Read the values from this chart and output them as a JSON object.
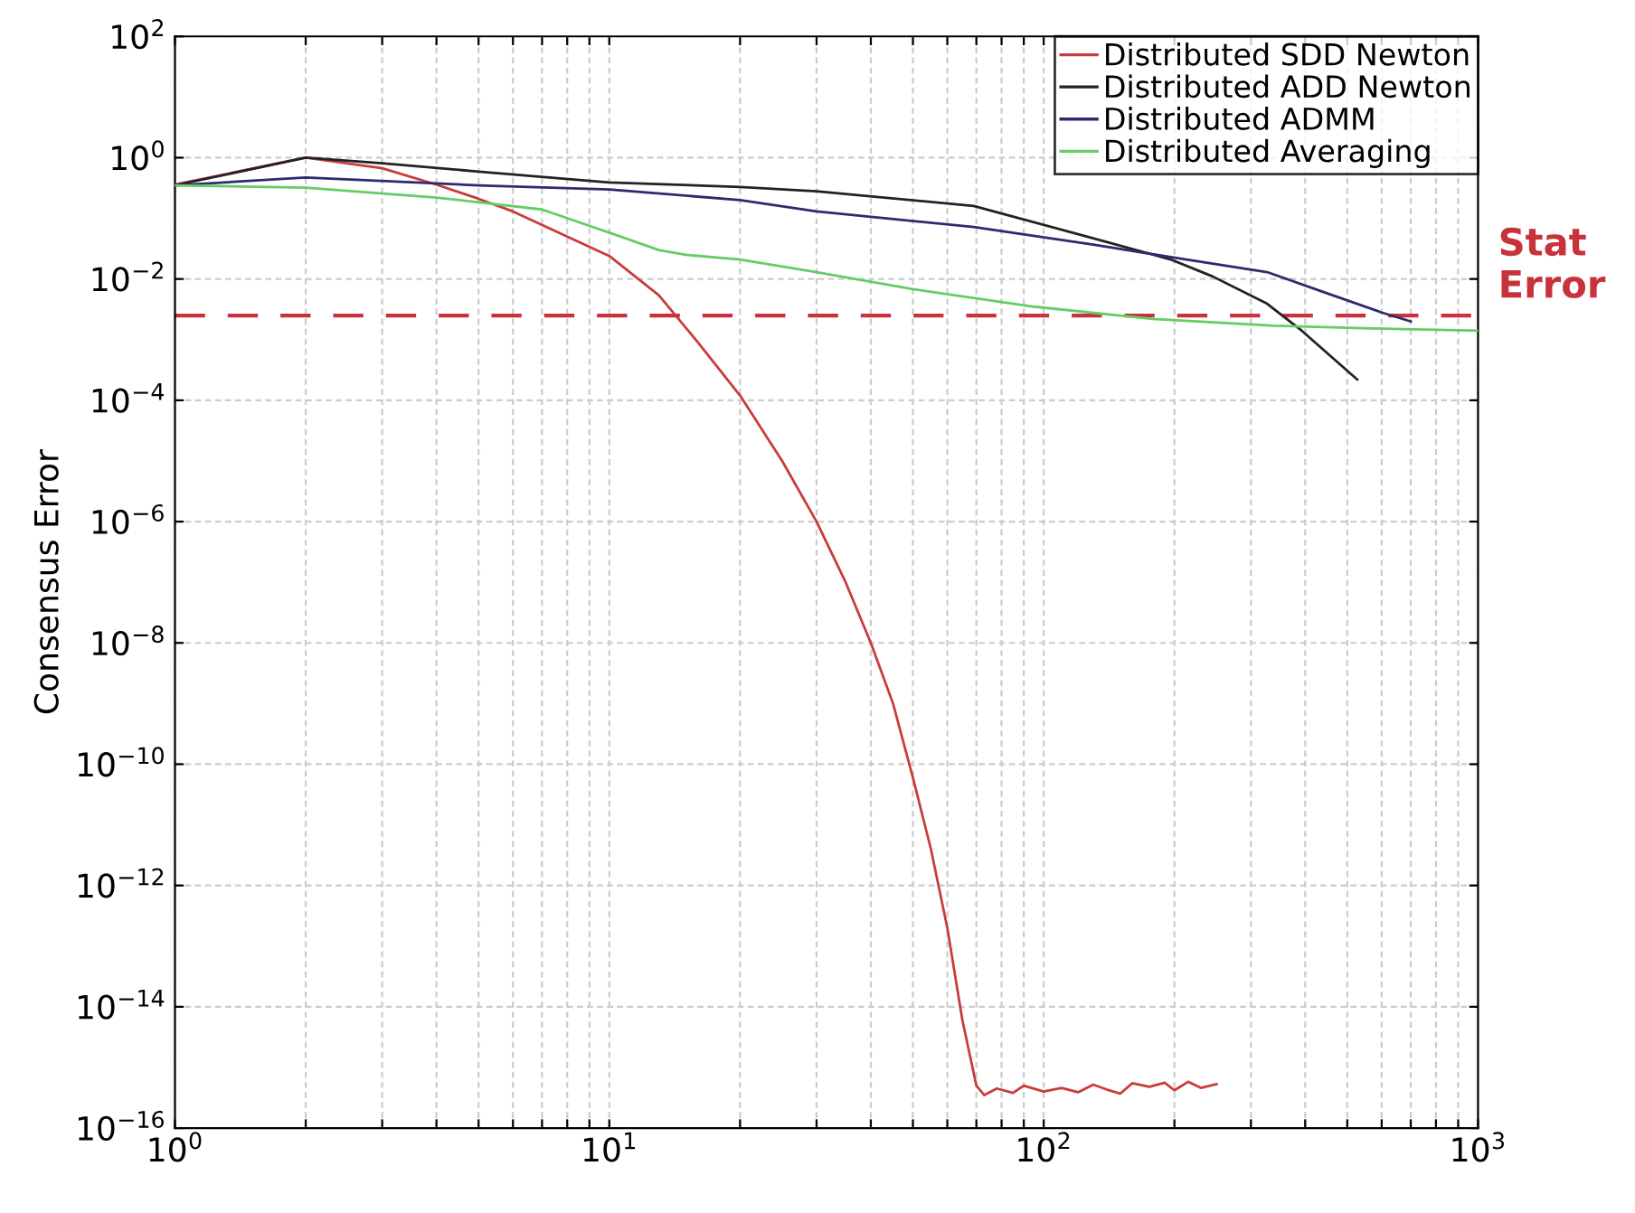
{
  "chart_data": {
    "type": "line",
    "ylabel": "Consensus Error",
    "log": "xy",
    "grid": true,
    "legend": "top right",
    "line_style": "solid",
    "marker": "none",
    "xlim": [
      1,
      1000
    ],
    "xticks": [
      {
        "value": 1,
        "label": "10$^{0}$"
      },
      {
        "value": 2,
        "label": null
      },
      {
        "value": 3,
        "label": null
      },
      {
        "value": 4,
        "label": null
      },
      {
        "value": 5,
        "label": null
      },
      {
        "value": 6,
        "label": null
      },
      {
        "value": 7,
        "label": null
      },
      {
        "value": 8,
        "label": null
      },
      {
        "value": 9,
        "label": null
      },
      {
        "value": 10,
        "label": "10$^{1}$"
      },
      {
        "value": 20,
        "label": null
      },
      {
        "value": 30,
        "label": null
      },
      {
        "value": 40,
        "label": null
      },
      {
        "value": 50,
        "label": null
      },
      {
        "value": 60,
        "label": null
      },
      {
        "value": 70,
        "label": null
      },
      {
        "value": 80,
        "label": null
      },
      {
        "value": 90,
        "label": null
      },
      {
        "value": 100,
        "label": "10$^{2}$"
      },
      {
        "value": 200,
        "label": null
      },
      {
        "value": 300,
        "label": null
      },
      {
        "value": 400,
        "label": null
      },
      {
        "value": 500,
        "label": null
      },
      {
        "value": 600,
        "label": null
      },
      {
        "value": 700,
        "label": null
      },
      {
        "value": 800,
        "label": null
      },
      {
        "value": 900,
        "label": null
      },
      {
        "value": 1000,
        "label": "10$^{3}$"
      }
    ],
    "ylim": [
      1e-16,
      100
    ],
    "yticks": [
      {
        "value": 1e-16,
        "label": "10$^{−16}$"
      },
      {
        "value": 1e-14,
        "label": "10$^{−14}$"
      },
      {
        "value": 1e-12,
        "label": "10$^{−12}$"
      },
      {
        "value": 1e-10,
        "label": "10$^{−10}$"
      },
      {
        "value": 1e-08,
        "label": "10$^{−8}$"
      },
      {
        "value": 1e-06,
        "label": "10$^{−6}$"
      },
      {
        "value": 0.0001,
        "label": "10$^{−4}$"
      },
      {
        "value": 0.01,
        "label": "10$^{−2}$"
      },
      {
        "value": 1,
        "label": "10$^{0}$"
      },
      {
        "value": 100,
        "label": "10$^{2}$"
      }
    ],
    "ref_lines": [
      {
        "axis": "y",
        "value": 0.0025,
        "label": "Stat Error",
        "color": "#c8323c",
        "line_style": "dashed"
      }
    ],
    "series": [
      {
        "name": "Distributed SDD Newton",
        "color": "#c83c3c",
        "x": [
          1,
          2,
          3,
          4,
          5,
          6,
          8,
          10,
          13,
          16,
          20,
          25,
          30,
          35,
          40,
          45,
          50,
          55,
          60,
          65,
          70,
          73,
          78,
          85,
          90,
          100,
          110,
          120,
          130,
          140,
          150,
          160,
          175,
          190,
          200,
          215,
          230,
          250
        ],
        "values": [
          0.36,
          1.0,
          0.67,
          0.36,
          0.21,
          0.13,
          0.05,
          0.024,
          0.0054,
          0.0009,
          0.00012,
          1e-05,
          1e-06,
          1e-07,
          1e-08,
          1e-09,
          6e-11,
          4e-12,
          2e-13,
          6e-15,
          5e-16,
          3.5e-16,
          4.5e-16,
          3.8e-16,
          5e-16,
          4e-16,
          4.6e-16,
          3.9e-16,
          5.2e-16,
          4.3e-16,
          3.7e-16,
          5.5e-16,
          4.8e-16,
          5.6e-16,
          4.2e-16,
          5.8e-16,
          4.6e-16,
          5.3e-16
        ]
      },
      {
        "name": "Distributed ADD Newton",
        "color": "#222222",
        "x": [
          1,
          2,
          3,
          5,
          10,
          20,
          30,
          69,
          130,
          196,
          245,
          327,
          393,
          527
        ],
        "values": [
          0.35,
          1.0,
          0.81,
          0.59,
          0.39,
          0.33,
          0.28,
          0.16,
          0.047,
          0.021,
          0.011,
          0.0039,
          0.0014,
          0.00022
        ]
      },
      {
        "name": "Distributed ADMM",
        "color": "#2b2b70",
        "x": [
          1,
          2,
          5,
          10,
          20,
          30,
          69,
          130,
          196,
          327,
          435,
          600,
          700
        ],
        "values": [
          0.35,
          0.47,
          0.35,
          0.3,
          0.2,
          0.13,
          0.072,
          0.037,
          0.023,
          0.013,
          0.0063,
          0.0028,
          0.002
        ]
      },
      {
        "name": "Distributed Averaging",
        "color": "#66cc66",
        "x": [
          1,
          2,
          4,
          7,
          10,
          13,
          15,
          20,
          30,
          50,
          95,
          178,
          340,
          640,
          1000
        ],
        "values": [
          0.35,
          0.32,
          0.22,
          0.14,
          0.058,
          0.03,
          0.025,
          0.021,
          0.013,
          0.0068,
          0.0035,
          0.0022,
          0.0017,
          0.0015,
          0.0014
        ]
      }
    ]
  }
}
